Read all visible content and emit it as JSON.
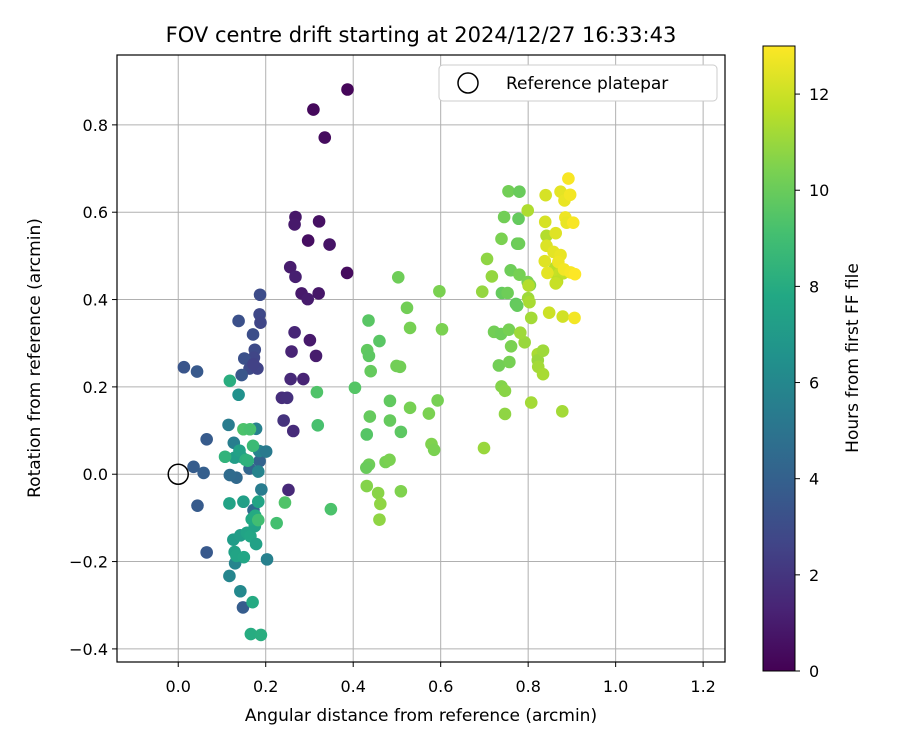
{
  "chart_data": {
    "type": "scatter",
    "title": "FOV centre drift starting at 2024/12/27 16:33:43",
    "xlabel": "Angular distance from reference (arcmin)",
    "ylabel": "Rotation from reference (arcmin)",
    "xlim": [
      -0.14,
      1.25
    ],
    "ylim": [
      -0.43,
      0.96
    ],
    "xticks": [
      0.0,
      0.2,
      0.4,
      0.6,
      0.8,
      1.0,
      1.2
    ],
    "xtick_labels": [
      "0.0",
      "0.2",
      "0.4",
      "0.6",
      "0.8",
      "1.0",
      "1.2"
    ],
    "yticks": [
      -0.4,
      -0.2,
      0.0,
      0.2,
      0.4,
      0.6,
      0.8
    ],
    "ytick_labels": [
      "−0.4",
      "−0.2",
      "0.0",
      "0.2",
      "0.4",
      "0.6",
      "0.8"
    ],
    "grid": true,
    "legend": {
      "position": "top-right",
      "entries": [
        {
          "label": "Reference platepar",
          "marker": "open-circle"
        }
      ]
    },
    "reference_point": {
      "x": 0.0,
      "y": 0.0
    },
    "colorbar": {
      "label": "Hours from first FF file",
      "colormap": "viridis",
      "range": [
        0,
        13
      ],
      "ticks": [
        0,
        2,
        4,
        6,
        8,
        10,
        12
      ],
      "tick_labels": [
        "0",
        "2",
        "4",
        "6",
        "8",
        "10",
        "12"
      ]
    },
    "points": [
      [
        0.387,
        0.881,
        0.2
      ],
      [
        0.309,
        0.835,
        0.3
      ],
      [
        0.335,
        0.771,
        0.4
      ],
      [
        0.268,
        0.589,
        0.8
      ],
      [
        0.266,
        0.572,
        0.9
      ],
      [
        0.322,
        0.579,
        0.6
      ],
      [
        0.297,
        0.535,
        0.5
      ],
      [
        0.346,
        0.526,
        0.7
      ],
      [
        0.256,
        0.474,
        1.0
      ],
      [
        0.386,
        0.461,
        0.4
      ],
      [
        0.268,
        0.452,
        1.1
      ],
      [
        0.282,
        0.414,
        0.9
      ],
      [
        0.321,
        0.414,
        0.8
      ],
      [
        0.296,
        0.401,
        1.0
      ],
      [
        0.266,
        0.325,
        1.4
      ],
      [
        0.301,
        0.307,
        0.9
      ],
      [
        0.259,
        0.281,
        1.3
      ],
      [
        0.315,
        0.271,
        1.0
      ],
      [
        0.257,
        0.218,
        1.5
      ],
      [
        0.286,
        0.218,
        1.3
      ],
      [
        0.237,
        0.175,
        1.7
      ],
      [
        0.249,
        0.175,
        1.8
      ],
      [
        0.241,
        0.123,
        1.9
      ],
      [
        0.263,
        0.099,
        1.6
      ],
      [
        0.252,
        -0.036,
        1.5
      ],
      [
        0.187,
        0.411,
        3.0
      ],
      [
        0.186,
        0.366,
        2.8
      ],
      [
        0.138,
        0.351,
        3.2
      ],
      [
        0.188,
        0.347,
        2.7
      ],
      [
        0.171,
        0.32,
        3.1
      ],
      [
        0.175,
        0.285,
        2.9
      ],
      [
        0.173,
        0.267,
        2.7
      ],
      [
        0.151,
        0.265,
        3.2
      ],
      [
        0.163,
        0.242,
        2.9
      ],
      [
        0.181,
        0.242,
        2.6
      ],
      [
        0.013,
        0.245,
        3.4
      ],
      [
        0.043,
        0.235,
        3.6
      ],
      [
        0.145,
        0.227,
        3.5
      ],
      [
        0.172,
        0.252,
        2.5
      ],
      [
        0.065,
        0.08,
        3.7
      ],
      [
        0.035,
        0.017,
        3.8
      ],
      [
        0.058,
        0.003,
        3.9
      ],
      [
        0.044,
        -0.072,
        3.7
      ],
      [
        0.065,
        -0.179,
        3.6
      ],
      [
        0.148,
        -0.305,
        3.8
      ],
      [
        0.186,
        0.03,
        4.1
      ],
      [
        0.163,
        0.013,
        4.2
      ],
      [
        0.133,
        -0.008,
        4.4
      ],
      [
        0.172,
        -0.082,
        4.6
      ],
      [
        0.118,
        -0.002,
        4.5
      ],
      [
        0.115,
        0.113,
        5.4
      ],
      [
        0.178,
        0.104,
        5.6
      ],
      [
        0.127,
        0.072,
        5.5
      ],
      [
        0.185,
        0.053,
        5.7
      ],
      [
        0.201,
        0.052,
        5.3
      ],
      [
        0.183,
        0.006,
        5.8
      ],
      [
        0.19,
        -0.035,
        5.4
      ],
      [
        0.203,
        -0.195,
        5.6
      ],
      [
        0.13,
        -0.204,
        5.8
      ],
      [
        0.117,
        -0.233,
        5.9
      ],
      [
        0.142,
        -0.268,
        6.1
      ],
      [
        0.138,
        0.182,
        6.5
      ],
      [
        0.144,
        0.04,
        6.9
      ],
      [
        0.129,
        0.038,
        7.2
      ],
      [
        0.14,
        0.054,
        7.4
      ],
      [
        0.117,
        -0.067,
        7.5
      ],
      [
        0.149,
        -0.063,
        7.3
      ],
      [
        0.183,
        -0.063,
        7.6
      ],
      [
        0.126,
        -0.15,
        7.1
      ],
      [
        0.129,
        -0.178,
        7.4
      ],
      [
        0.133,
        -0.187,
        7.6
      ],
      [
        0.142,
        -0.14,
        7.2
      ],
      [
        0.157,
        -0.134,
        7.5
      ],
      [
        0.165,
        -0.142,
        7.7
      ],
      [
        0.175,
        -0.119,
        7.5
      ],
      [
        0.168,
        -0.103,
        7.8
      ],
      [
        0.176,
        -0.095,
        7.9
      ],
      [
        0.15,
        -0.19,
        7.7
      ],
      [
        0.178,
        -0.16,
        7.4
      ],
      [
        0.17,
        -0.293,
        7.9
      ],
      [
        0.166,
        -0.366,
        8.0
      ],
      [
        0.189,
        -0.368,
        8.1
      ],
      [
        0.118,
        0.214,
        8.1
      ],
      [
        0.154,
        0.033,
        8.2
      ],
      [
        0.107,
        0.04,
        8.4
      ],
      [
        0.159,
        0.031,
        8.3
      ],
      [
        0.149,
        0.103,
        9.3
      ],
      [
        0.164,
        0.103,
        9.2
      ],
      [
        0.244,
        -0.065,
        9.4
      ],
      [
        0.225,
        -0.112,
        9.1
      ],
      [
        0.183,
        -0.105,
        9.0
      ],
      [
        0.171,
        0.065,
        8.8
      ],
      [
        0.317,
        0.188,
        9.4
      ],
      [
        0.319,
        0.112,
        9.2
      ],
      [
        0.349,
        -0.08,
        9.3
      ],
      [
        0.435,
        0.352,
        9.6
      ],
      [
        0.46,
        0.305,
        9.6
      ],
      [
        0.432,
        0.284,
        9.8
      ],
      [
        0.436,
        0.271,
        9.7
      ],
      [
        0.404,
        0.198,
        9.5
      ],
      [
        0.44,
        0.236,
        9.9
      ],
      [
        0.438,
        0.132,
        9.9
      ],
      [
        0.431,
        0.091,
        9.5
      ],
      [
        0.484,
        0.168,
        9.8
      ],
      [
        0.484,
        0.123,
        9.9
      ],
      [
        0.509,
        0.097,
        9.7
      ],
      [
        0.503,
        0.451,
        10.1
      ],
      [
        0.523,
        0.381,
        10.2
      ],
      [
        0.53,
        0.335,
        10.3
      ],
      [
        0.507,
        0.246,
        10.2
      ],
      [
        0.499,
        0.248,
        10.2
      ],
      [
        0.53,
        0.152,
        10.3
      ],
      [
        0.573,
        0.139,
        10.4
      ],
      [
        0.593,
        0.169,
        10.3
      ],
      [
        0.597,
        0.419,
        10.4
      ],
      [
        0.603,
        0.332,
        10.4
      ],
      [
        0.579,
        0.069,
        10.5
      ],
      [
        0.585,
        0.056,
        10.4
      ],
      [
        0.436,
        0.022,
        10.1
      ],
      [
        0.43,
        0.015,
        10.0
      ],
      [
        0.474,
        0.028,
        10.3
      ],
      [
        0.483,
        0.033,
        10.4
      ],
      [
        0.431,
        -0.027,
        10.6
      ],
      [
        0.457,
        -0.043,
        10.7
      ],
      [
        0.462,
        -0.068,
        10.8
      ],
      [
        0.46,
        -0.104,
        10.8
      ],
      [
        0.509,
        -0.039,
        10.5
      ],
      [
        0.695,
        0.418,
        10.9
      ],
      [
        0.706,
        0.493,
        10.8
      ],
      [
        0.717,
        0.453,
        10.9
      ],
      [
        0.739,
        0.539,
        10.4
      ],
      [
        0.745,
        0.589,
        10.2
      ],
      [
        0.755,
        0.648,
        10.2
      ],
      [
        0.78,
        0.647,
        10.0
      ],
      [
        0.778,
        0.585,
        9.9
      ],
      [
        0.775,
        0.528,
        10.0
      ],
      [
        0.779,
        0.528,
        10.1
      ],
      [
        0.76,
        0.467,
        10.1
      ],
      [
        0.78,
        0.457,
        10.3
      ],
      [
        0.799,
        0.44,
        10.4
      ],
      [
        0.804,
        0.433,
        10.5
      ],
      [
        0.772,
        0.39,
        9.8
      ],
      [
        0.775,
        0.386,
        9.9
      ],
      [
        0.74,
        0.415,
        9.9
      ],
      [
        0.753,
        0.415,
        10.1
      ],
      [
        0.722,
        0.326,
        10.2
      ],
      [
        0.738,
        0.321,
        10.1
      ],
      [
        0.756,
        0.331,
        10.3
      ],
      [
        0.761,
        0.293,
        10.4
      ],
      [
        0.733,
        0.249,
        10.2
      ],
      [
        0.757,
        0.257,
        10.3
      ],
      [
        0.739,
        0.201,
        10.6
      ],
      [
        0.747,
        0.191,
        10.7
      ],
      [
        0.747,
        0.138,
        10.8
      ],
      [
        0.699,
        0.06,
        11.0
      ],
      [
        0.792,
        0.302,
        11.0
      ],
      [
        0.782,
        0.324,
        11.1
      ],
      [
        0.8,
        0.403,
        11.1
      ],
      [
        0.807,
        0.358,
        11.2
      ],
      [
        0.822,
        0.275,
        11.3
      ],
      [
        0.822,
        0.261,
        11.0
      ],
      [
        0.834,
        0.283,
        11.1
      ],
      [
        0.823,
        0.246,
        11.2
      ],
      [
        0.834,
        0.229,
        11.3
      ],
      [
        0.807,
        0.164,
        11.2
      ],
      [
        0.799,
        0.604,
        11.4
      ],
      [
        0.801,
        0.432,
        11.5
      ],
      [
        0.803,
        0.394,
        11.3
      ],
      [
        0.842,
        0.546,
        11.5
      ],
      [
        0.853,
        0.463,
        11.7
      ],
      [
        0.862,
        0.473,
        11.6
      ],
      [
        0.872,
        0.46,
        11.9
      ],
      [
        0.88,
        0.46,
        11.8
      ],
      [
        0.866,
        0.441,
        11.7
      ],
      [
        0.863,
        0.437,
        11.9
      ],
      [
        0.848,
        0.37,
        12.0
      ],
      [
        0.879,
        0.361,
        12.1
      ],
      [
        0.878,
        0.144,
        11.2
      ],
      [
        0.84,
        0.639,
        12.2
      ],
      [
        0.874,
        0.647,
        12.5
      ],
      [
        0.892,
        0.677,
        12.9
      ],
      [
        0.883,
        0.627,
        12.6
      ],
      [
        0.896,
        0.64,
        12.8
      ],
      [
        0.839,
        0.578,
        12.2
      ],
      [
        0.885,
        0.588,
        12.7
      ],
      [
        0.888,
        0.576,
        12.6
      ],
      [
        0.903,
        0.576,
        12.9
      ],
      [
        0.863,
        0.552,
        12.4
      ],
      [
        0.842,
        0.523,
        12.3
      ],
      [
        0.858,
        0.509,
        12.5
      ],
      [
        0.874,
        0.502,
        12.6
      ],
      [
        0.869,
        0.486,
        12.7
      ],
      [
        0.838,
        0.488,
        12.4
      ],
      [
        0.844,
        0.461,
        12.5
      ],
      [
        0.882,
        0.469,
        12.8
      ],
      [
        0.897,
        0.462,
        12.9
      ],
      [
        0.906,
        0.358,
        12.8
      ],
      [
        0.907,
        0.458,
        13.0
      ]
    ]
  }
}
